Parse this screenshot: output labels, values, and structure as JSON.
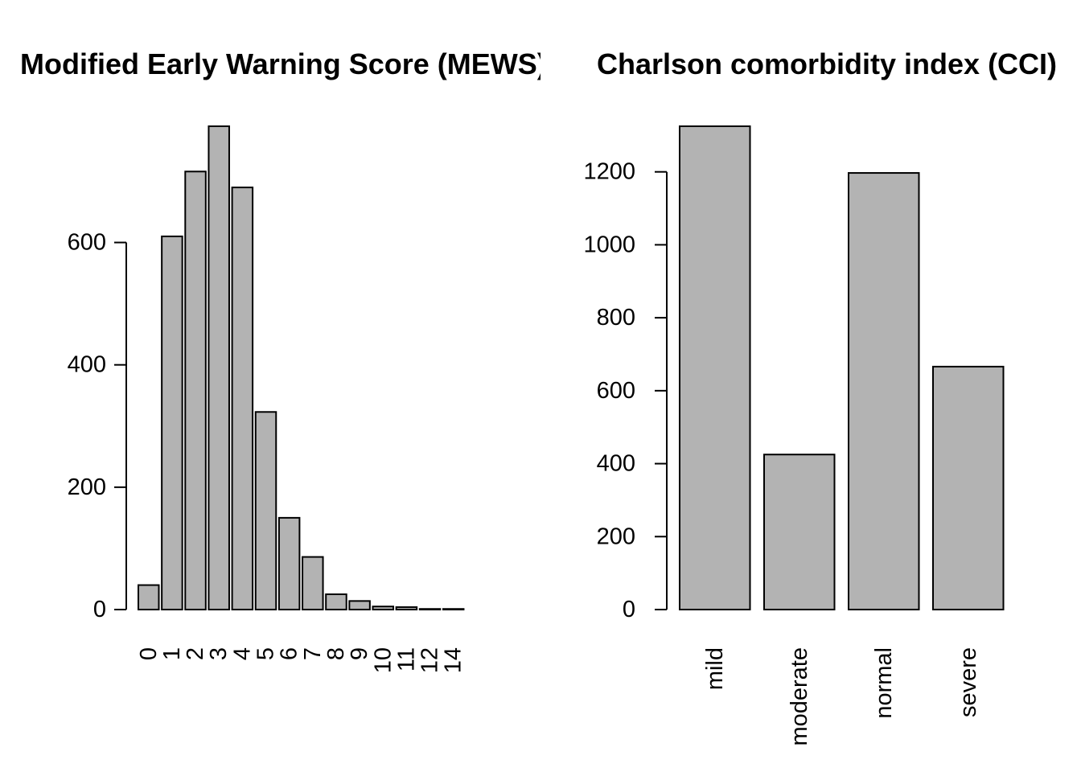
{
  "chart_data": [
    {
      "type": "bar",
      "title": "Modified Early Warning Score (MEWS)",
      "xlabel": "",
      "ylabel": "",
      "categories": [
        "0",
        "1",
        "2",
        "3",
        "4",
        "5",
        "6",
        "7",
        "8",
        "9",
        "10",
        "11",
        "12",
        "14"
      ],
      "values": [
        40,
        610,
        716,
        790,
        690,
        323,
        150,
        86,
        25,
        14,
        5,
        4,
        1,
        1
      ],
      "yticks": [
        0,
        200,
        400,
        600
      ],
      "ylim": [
        0,
        790
      ],
      "bar_color": "#b3b3b3",
      "grid": false
    },
    {
      "type": "bar",
      "title": "Charlson comorbidity index (CCI)",
      "xlabel": "",
      "ylabel": "",
      "categories": [
        "mild",
        "moderate",
        "normal",
        "severe"
      ],
      "values": [
        1325,
        425,
        1197,
        666
      ],
      "yticks": [
        0,
        200,
        400,
        600,
        800,
        1000,
        1200
      ],
      "ylim": [
        0,
        1325
      ],
      "bar_color": "#b3b3b3",
      "grid": false
    }
  ]
}
